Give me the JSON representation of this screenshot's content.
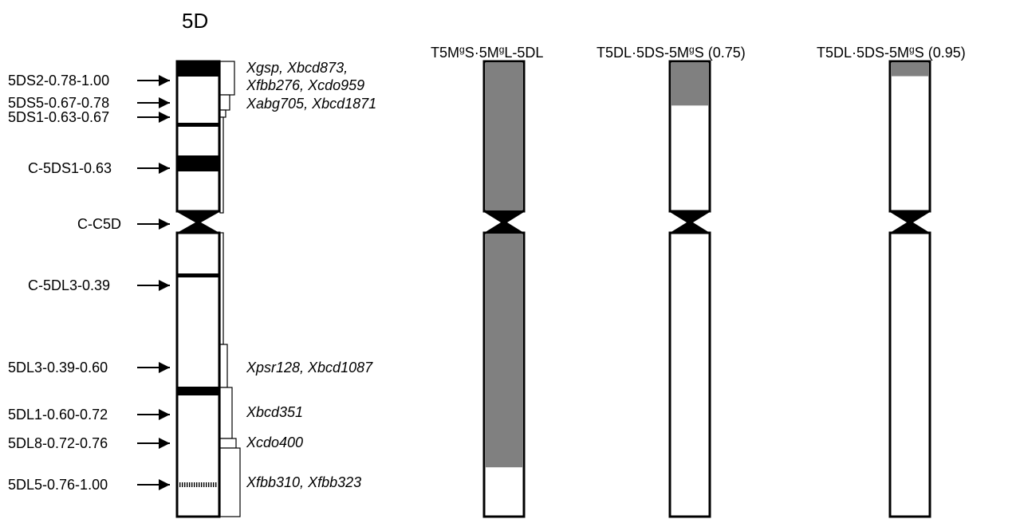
{
  "main_title": "5D",
  "reference": {
    "bin_labels": [
      "5DS2-0.78-1.00",
      "5DS5-0.67-0.78",
      "5DS1-0.63-0.67",
      "C-5DS1-0.63",
      "C-C5D",
      "C-5DL3-0.39",
      "5DL3-0.39-0.60",
      "5DL1-0.60-0.72",
      "5DL8-0.72-0.76",
      "5DL5-0.76-1.00"
    ],
    "markers": [
      "Xgsp, Xbcd873,",
      "Xfbb276, Xcdo959",
      "Xabg705, Xbcd1871",
      "Xpsr128, Xbcd1087",
      "Xbcd351",
      "Xcdo400",
      "Xfbb310, Xfbb323"
    ]
  },
  "chromosomes": [
    {
      "title_parts": [
        "T5M",
        "g",
        "S·5M",
        "g",
        "L-5DL"
      ],
      "fill_top_short": 1.0,
      "fill_top_long": 0.83
    },
    {
      "title_parts": [
        "T5DL·5DS-5M",
        "g",
        "S (0.75)"
      ],
      "fill_top_short": 0.29,
      "fill_top_long": 0.0
    },
    {
      "title_parts": [
        "T5DL·5DS-5M",
        "g",
        "S (0.95)"
      ],
      "fill_top_short": 0.09,
      "fill_top_long": 0.0
    }
  ],
  "colors": {
    "fill": "#808080",
    "band": "#000000",
    "outline": "#000000"
  }
}
